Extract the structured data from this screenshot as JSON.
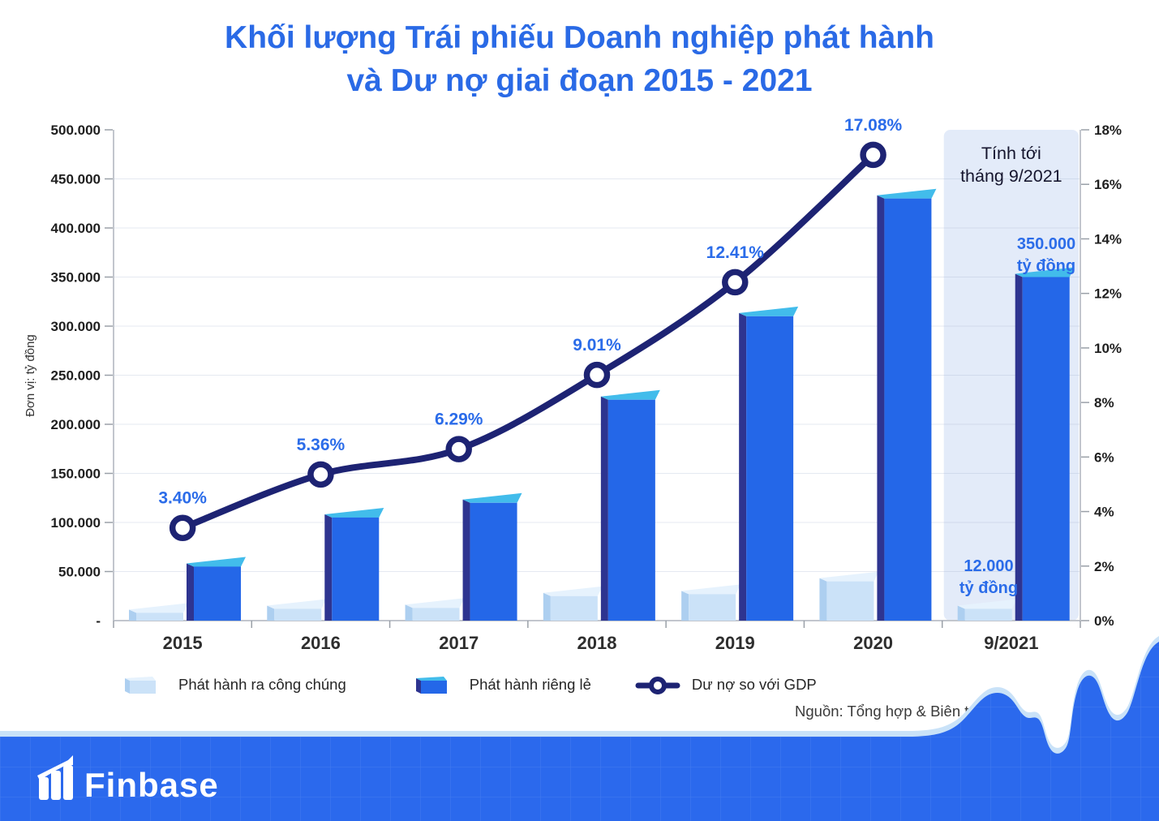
{
  "title": {
    "line1": "Khối lượng Trái phiếu Doanh nghiệp phát hành",
    "line2": "và Dư nợ giai đoạn 2015 - 2021"
  },
  "axis_left_label": "Đơn vị: tỷ đồng",
  "chart_data": {
    "type": "combo",
    "categories": [
      "2015",
      "2016",
      "2017",
      "2018",
      "2019",
      "2020",
      "9/2021"
    ],
    "left_axis": {
      "title": "Đơn vị: tỷ đồng",
      "min": 0,
      "max": 500000,
      "ticks": [
        "500.000",
        "450.000",
        "400.000",
        "350.000",
        "300.000",
        "250.000",
        "200.000",
        "150.000",
        "100.000",
        "50.000",
        "-"
      ]
    },
    "right_axis": {
      "min": 0,
      "max": 18,
      "ticks": [
        "18%",
        "16%",
        "14%",
        "12%",
        "10%",
        "8%",
        "6%",
        "4%",
        "2%",
        "0%"
      ]
    },
    "series": [
      {
        "name": "Phát hành ra công chúng",
        "type": "bar",
        "axis": "left",
        "values": [
          8000,
          12000,
          13000,
          25000,
          27000,
          40000,
          12000
        ]
      },
      {
        "name": "Phát hành riêng lẻ",
        "type": "bar",
        "axis": "left",
        "values": [
          55000,
          105000,
          120000,
          225000,
          310000,
          430000,
          350000
        ]
      },
      {
        "name": "Dư nợ so với GDP",
        "type": "line",
        "axis": "right",
        "values": [
          3.4,
          5.36,
          6.29,
          9.01,
          12.41,
          17.08,
          null
        ],
        "point_labels": [
          "3.40%",
          "5.36%",
          "6.29%",
          "9.01%",
          "12.41%",
          "17.08%"
        ]
      }
    ],
    "highlight": {
      "category": "9/2021",
      "note_line1": "Tính tới",
      "note_line2": "tháng 9/2021"
    },
    "bar_annotations": [
      {
        "category": "9/2021",
        "series": "Phát hành riêng lẻ",
        "line1": "350.000",
        "line2": "tỷ đồng"
      },
      {
        "category": "9/2021",
        "series": "Phát hành ra công chúng",
        "line1": "12.000",
        "line2": "tỷ đồng"
      }
    ],
    "legend_position": "bottom",
    "grid": "faint-horizontal"
  },
  "legend": [
    {
      "label": "Phát hành ra công chúng",
      "swatch": "bar-light"
    },
    {
      "label": "Phát hành riêng lẻ",
      "swatch": "bar-dark"
    },
    {
      "label": "Dư nợ so với GDP",
      "swatch": "line"
    }
  ],
  "source": "Nguồn: Tổng hợp & Biên tập",
  "footer": {
    "brand": "Finbase"
  },
  "colors": {
    "title": "#2A6AE6",
    "percent_label": "#2B6CE9",
    "line": "#1D2373",
    "bar_dark_front": "#2467E8",
    "bar_dark_side": "#2E3490",
    "bar_dark_top": "#42BCEB",
    "bar_light_front": "#CBE2F8",
    "bar_light_side": "#ADCFF0",
    "bar_light_top": "#E6F2FD",
    "highlight_bg": "#E3EBF9",
    "axis": "#C2C6CD",
    "footer_bg": "#2B69ED",
    "footer_grid": "#5B8BF2",
    "footer_wave_outline": "#C9E2F8"
  }
}
